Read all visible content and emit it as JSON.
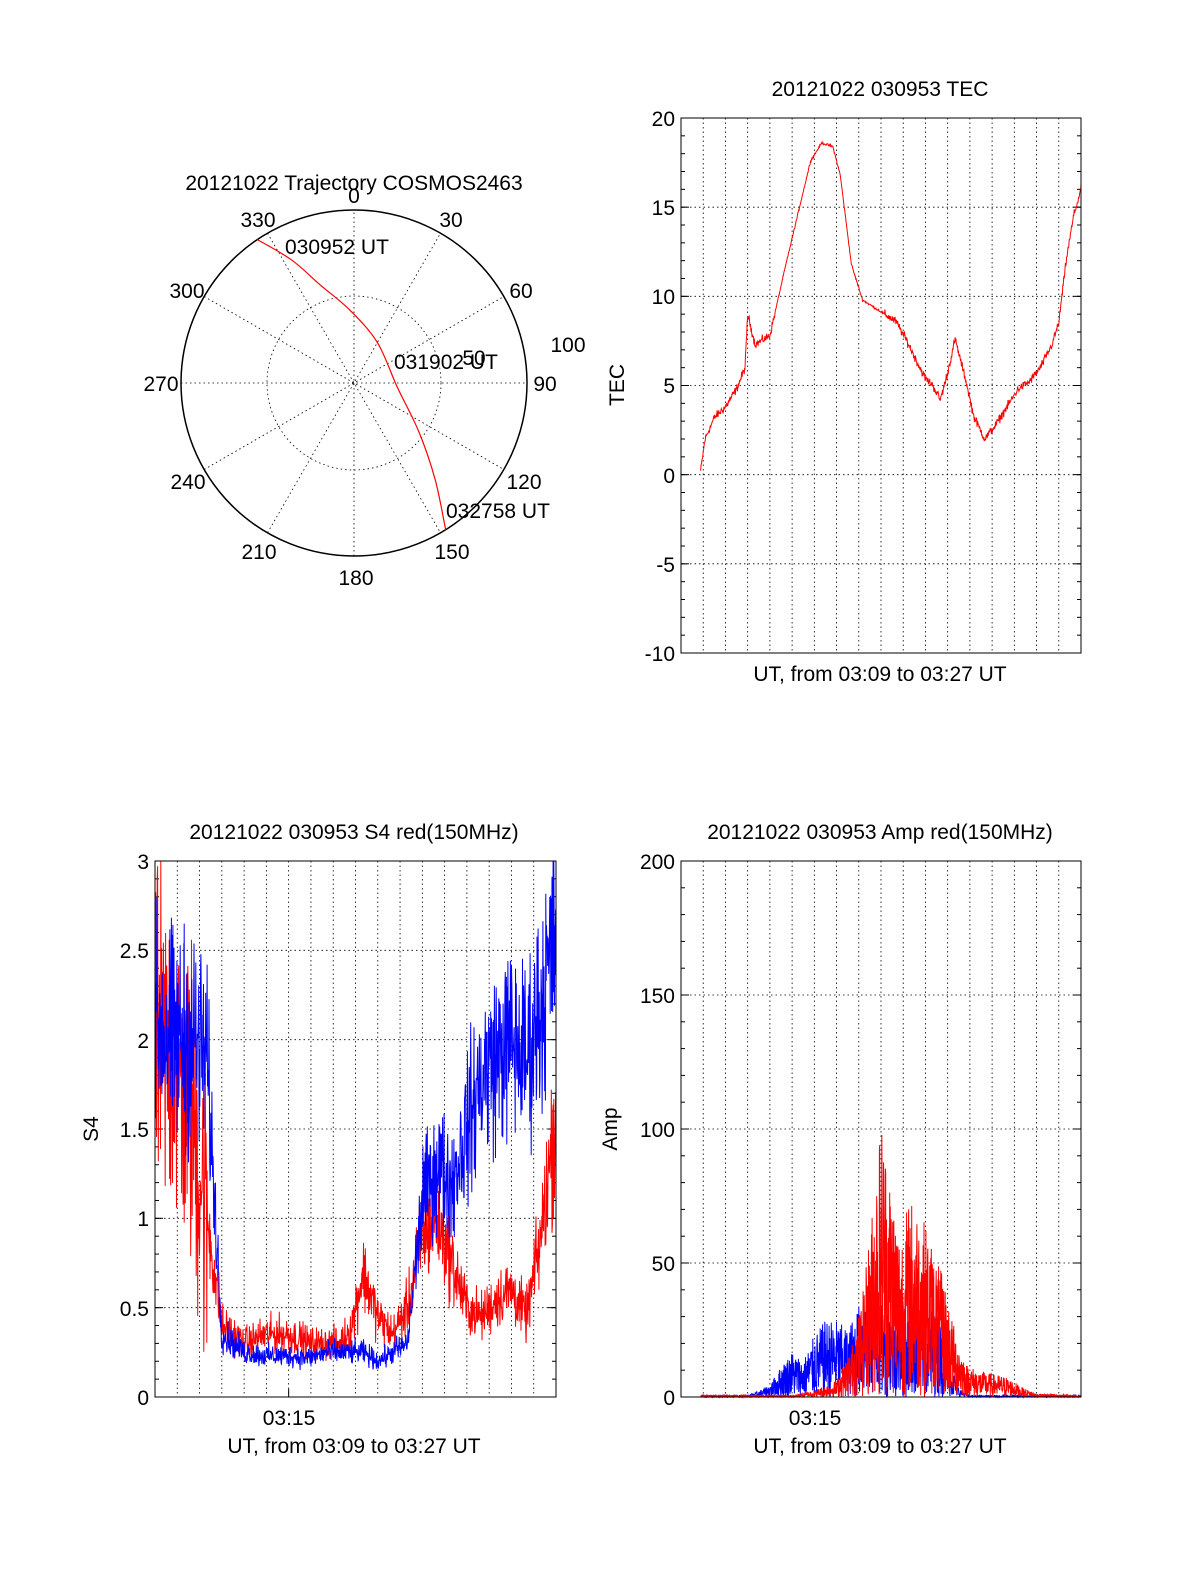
{
  "chart_data": [
    {
      "type": "polar",
      "title": "20121022 Trajectory COSMOS2463",
      "angle_labels": [
        "0",
        "30",
        "60",
        "90",
        "120",
        "150",
        "180",
        "210",
        "240",
        "270",
        "300",
        "330"
      ],
      "radius_labels": [
        "50",
        "100"
      ],
      "rlim": [
        0,
        100
      ],
      "grid": true,
      "series": [
        {
          "color": "#ff0000",
          "points": [
            {
              "az": 326,
              "r": 100
            },
            {
              "az": 333,
              "r": 80
            },
            {
              "az": 341,
              "r": 60
            },
            {
              "az": 357,
              "r": 42
            },
            {
              "az": 30,
              "r": 27
            },
            {
              "az": 95,
              "r": 25
            },
            {
              "az": 127,
              "r": 47
            },
            {
              "az": 140,
              "r": 73
            },
            {
              "az": 148,
              "r": 100
            }
          ]
        }
      ],
      "annotations": [
        "030952 UT",
        "031902 UT",
        "032758 UT"
      ]
    },
    {
      "type": "line",
      "title": "20121022 030953 TEC",
      "xlabel": "UT, from 03:09 to 03:27 UT",
      "ylabel": "TEC",
      "xlim": [
        "03:09",
        "03:27"
      ],
      "ylim": [
        -10,
        20
      ],
      "y_ticks": [
        "20",
        "15",
        "10",
        "5",
        "0",
        "-5",
        "-10"
      ],
      "grid": true,
      "series": [
        {
          "color": "#ff0000",
          "x": [
            "03:09:53",
            "03:10:05",
            "03:10:30",
            "03:11:00",
            "03:11:30",
            "03:11:53",
            "03:12:00",
            "03:12:20",
            "03:13:00",
            "03:13:40",
            "03:14:20",
            "03:14:50",
            "03:15:20",
            "03:15:50",
            "03:16:10",
            "03:16:40",
            "03:17:10",
            "03:17:40",
            "03:18:10",
            "03:18:40",
            "03:19:10",
            "03:19:40",
            "03:20:00",
            "03:20:20",
            "03:20:40",
            "03:21:00",
            "03:21:20",
            "03:21:50",
            "03:22:10",
            "03:22:40",
            "03:23:10",
            "03:23:40",
            "03:24:10",
            "03:24:40",
            "03:25:10",
            "03:25:40",
            "03:26:00",
            "03:26:20",
            "03:26:40",
            "03:27:00"
          ],
          "y": [
            0.2,
            2.0,
            3.2,
            3.8,
            4.8,
            6.0,
            9.0,
            7.3,
            7.8,
            11.5,
            15.0,
            17.6,
            18.6,
            18.4,
            16.8,
            11.8,
            9.8,
            9.4,
            9.0,
            8.6,
            7.5,
            6.2,
            5.4,
            5.0,
            4.2,
            5.7,
            7.6,
            5.2,
            3.3,
            2.0,
            2.8,
            3.8,
            4.8,
            5.2,
            6.0,
            7.2,
            8.5,
            12.0,
            14.5,
            16.0
          ]
        }
      ]
    },
    {
      "type": "line",
      "title": "20121022 030953 S4 red(150MHz)",
      "xlabel": "UT, from 03:09 to 03:27 UT",
      "ylabel": "S4",
      "xlim": [
        "03:09",
        "03:27"
      ],
      "ylim": [
        0,
        3
      ],
      "y_ticks": [
        "3",
        "2.5",
        "2",
        "1.5",
        "1",
        "0.5",
        "0"
      ],
      "x_tick_labels": [
        "03:15"
      ],
      "grid": true,
      "series": [
        {
          "color": "#ff0000",
          "x": [
            "03:09:00",
            "03:09:50",
            "03:10:40",
            "03:11:20",
            "03:12:00",
            "03:13:00",
            "03:14:00",
            "03:15:00",
            "03:16:00",
            "03:16:40",
            "03:17:20",
            "03:17:50",
            "03:18:20",
            "03:19:00",
            "03:19:40",
            "03:20:20",
            "03:21:00",
            "03:21:40",
            "03:22:20",
            "03:23:00",
            "03:23:40",
            "03:24:20",
            "03:25:00",
            "03:25:40",
            "03:26:20",
            "03:27:00"
          ],
          "y": [
            2.0,
            1.9,
            1.6,
            1.0,
            0.4,
            0.3,
            0.35,
            0.35,
            0.3,
            0.3,
            0.3,
            0.4,
            0.7,
            0.45,
            0.35,
            0.5,
            0.9,
            1.0,
            0.75,
            0.5,
            0.45,
            0.55,
            0.6,
            0.45,
            0.9,
            1.6
          ]
        },
        {
          "color": "#0000ff",
          "x": [
            "03:09:00",
            "03:09:50",
            "03:10:40",
            "03:11:20",
            "03:12:00",
            "03:13:00",
            "03:14:00",
            "03:15:00",
            "03:16:00",
            "03:16:40",
            "03:17:20",
            "03:17:50",
            "03:18:20",
            "03:19:00",
            "03:19:40",
            "03:20:20",
            "03:21:00",
            "03:21:40",
            "03:22:20",
            "03:23:00",
            "03:23:40",
            "03:24:20",
            "03:25:00",
            "03:25:40",
            "03:26:20",
            "03:27:00"
          ],
          "y": [
            2.1,
            2.0,
            2.0,
            1.9,
            0.35,
            0.25,
            0.23,
            0.23,
            0.22,
            0.25,
            0.25,
            0.25,
            0.25,
            0.2,
            0.25,
            0.3,
            1.1,
            1.3,
            1.2,
            1.5,
            1.8,
            1.9,
            2.0,
            1.9,
            2.2,
            2.6
          ]
        }
      ]
    },
    {
      "type": "line",
      "title": "20121022 030953 Amp red(150MHz)",
      "xlabel": "UT, from 03:09 to 03:27 UT",
      "ylabel": "Amp",
      "xlim": [
        "03:09",
        "03:27"
      ],
      "ylim": [
        0,
        200
      ],
      "y_ticks": [
        "200",
        "150",
        "100",
        "50",
        "0"
      ],
      "x_tick_labels": [
        "03:15"
      ],
      "grid": true,
      "series": [
        {
          "color": "#ff0000",
          "x": [
            "03:09:53",
            "03:12:00",
            "03:14:00",
            "03:15:00",
            "03:16:00",
            "03:16:40",
            "03:17:10",
            "03:17:40",
            "03:18:00",
            "03:18:20",
            "03:18:50",
            "03:19:20",
            "03:19:50",
            "03:20:20",
            "03:20:50",
            "03:21:20",
            "03:21:50",
            "03:22:20",
            "03:23:00",
            "03:23:40",
            "03:24:20",
            "03:25:00",
            "03:27:00"
          ],
          "y": [
            0.5,
            0.5,
            0.5,
            2,
            5,
            15,
            30,
            60,
            85,
            70,
            50,
            60,
            55,
            45,
            35,
            20,
            10,
            8,
            7,
            6,
            3,
            1,
            0.5
          ]
        },
        {
          "color": "#0000ff",
          "x": [
            "03:09:53",
            "03:12:00",
            "03:12:30",
            "03:13:00",
            "03:13:30",
            "03:14:00",
            "03:14:30",
            "03:15:00",
            "03:15:30",
            "03:16:00",
            "03:16:30",
            "03:17:00",
            "03:17:30",
            "03:18:00",
            "03:18:30",
            "03:19:00",
            "03:19:30",
            "03:20:00",
            "03:20:30",
            "03:21:00",
            "03:21:30",
            "03:22:00",
            "03:27:00"
          ],
          "y": [
            0.5,
            0.5,
            2,
            4,
            10,
            15,
            12,
            20,
            25,
            25,
            22,
            30,
            35,
            30,
            30,
            25,
            30,
            28,
            30,
            15,
            3,
            0.5,
            0.5
          ]
        }
      ]
    }
  ]
}
